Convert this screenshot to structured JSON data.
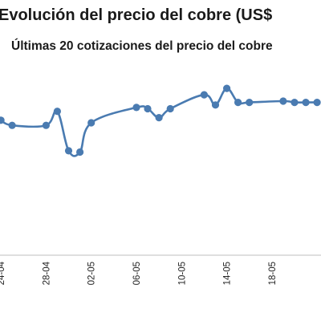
{
  "chart_data": {
    "type": "line",
    "title": "Evolución del precio del cobre (US$",
    "subtitle": "Últimas 20 cotizaciones del precio del cobre",
    "series_color": "#4a7bb1",
    "x_tick_labels": [
      "24-04",
      "28-04",
      "02-05",
      "06-05",
      "10-05",
      "14-05",
      "18-05"
    ],
    "x_tick_days": [
      0,
      4,
      8,
      12,
      16,
      20,
      24
    ],
    "x": [
      0,
      1,
      4,
      5,
      6,
      7,
      8,
      12,
      13,
      14,
      15,
      18,
      19,
      20,
      21,
      22,
      25,
      26,
      27,
      28
    ],
    "values": [
      4.46,
      4.42,
      4.42,
      4.53,
      4.22,
      4.21,
      4.44,
      4.56,
      4.55,
      4.48,
      4.55,
      4.66,
      4.58,
      4.71,
      4.6,
      4.6,
      4.61,
      4.6,
      4.6,
      4.6
    ],
    "xlim": [
      -1,
      28.7
    ],
    "ylim": [
      3.4,
      4.9
    ],
    "grid": false,
    "legend": "none"
  }
}
